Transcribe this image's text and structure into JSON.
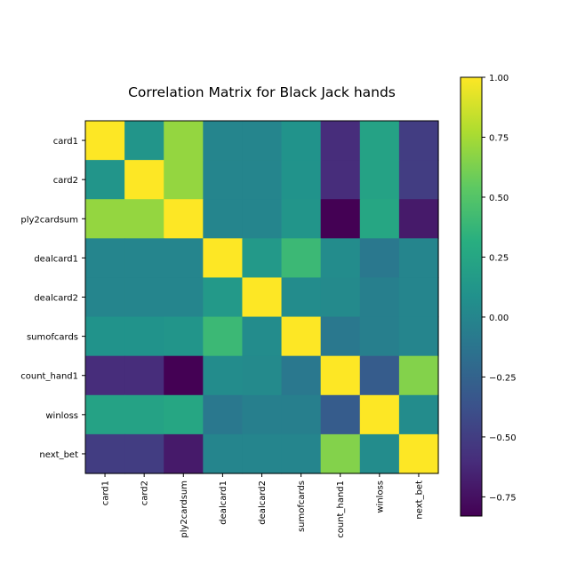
{
  "chart_data": {
    "type": "heatmap",
    "title": "Correlation Matrix for Black Jack hands",
    "xlabel": "",
    "ylabel": "",
    "labels": [
      "card1",
      "card2",
      "ply2cardsum",
      "dealcard1",
      "dealcard2",
      "sumofcards",
      "count_hand1",
      "winloss",
      "next_bet"
    ],
    "matrix": [
      [
        1.0,
        0.12,
        0.7,
        0.0,
        0.0,
        0.1,
        -0.6,
        0.22,
        -0.5
      ],
      [
        0.12,
        1.0,
        0.7,
        0.0,
        0.0,
        0.1,
        -0.6,
        0.22,
        -0.5
      ],
      [
        0.7,
        0.7,
        1.0,
        0.0,
        0.0,
        0.12,
        -0.83,
        0.25,
        -0.7
      ],
      [
        0.0,
        0.0,
        0.0,
        1.0,
        0.15,
        0.4,
        0.05,
        -0.1,
        0.0
      ],
      [
        0.0,
        0.0,
        0.0,
        0.15,
        1.0,
        0.05,
        0.03,
        -0.05,
        0.0
      ],
      [
        0.1,
        0.1,
        0.12,
        0.4,
        0.05,
        1.0,
        -0.1,
        -0.05,
        0.0
      ],
      [
        -0.6,
        -0.6,
        -0.83,
        0.05,
        0.03,
        -0.1,
        1.0,
        -0.3,
        0.65
      ],
      [
        0.22,
        0.22,
        0.25,
        -0.1,
        -0.05,
        -0.05,
        -0.3,
        1.0,
        0.05
      ],
      [
        -0.5,
        -0.5,
        -0.7,
        0.0,
        0.0,
        0.0,
        0.65,
        0.05,
        1.0
      ]
    ],
    "colorbar": {
      "range": [
        -0.83,
        1.0
      ],
      "ticks": [
        -0.75,
        -0.5,
        -0.25,
        0.0,
        0.25,
        0.5,
        0.75,
        1.0
      ],
      "tick_labels": [
        "−0.75",
        "−0.50",
        "−0.25",
        "0.00",
        "0.25",
        "0.50",
        "0.75",
        "1.00"
      ],
      "colormap": "viridis"
    },
    "grid": false,
    "legend": "colorbar-right"
  }
}
